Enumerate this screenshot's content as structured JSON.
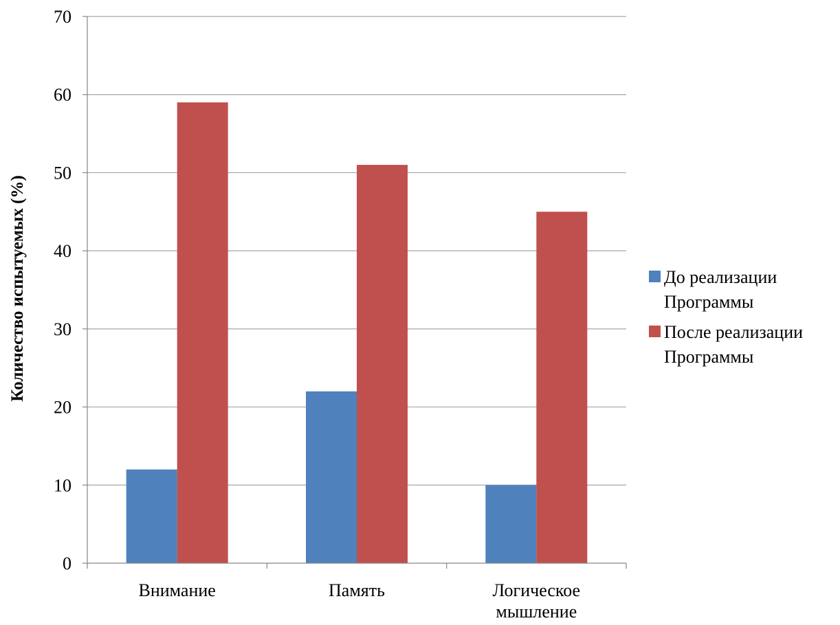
{
  "chart_data": {
    "type": "bar",
    "categories": [
      "Внимание",
      "Память",
      "Логическое мышление"
    ],
    "series": [
      {
        "name": "До реализации Программы",
        "values": [
          12,
          22,
          10
        ],
        "color": "#4F81BD"
      },
      {
        "name": "После реализации Программы",
        "values": [
          59,
          51,
          45
        ],
        "color": "#C0504D"
      }
    ],
    "title": "",
    "xlabel": "",
    "ylabel": "Количество испытуемых (%)",
    "ylim": [
      0,
      70
    ],
    "yticks": [
      0,
      10,
      20,
      30,
      40,
      50,
      60,
      70
    ],
    "grid": true,
    "legend_position": "right",
    "colors": {
      "gridline": "#A6A6A6",
      "axis": "#868686",
      "text": "#000000"
    }
  }
}
